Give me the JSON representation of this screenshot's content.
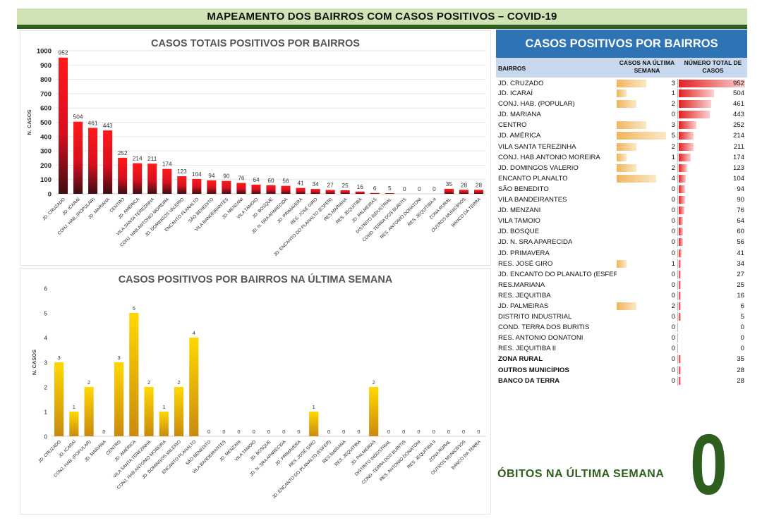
{
  "banner_title": "MAPEAMENTO DOS BAIRROS COM CASOS POSITIVOS – COVID-19",
  "colors": {
    "banner_bg": "#cfe3b4",
    "dark_green": "#2f5f1f",
    "table_title_bg": "#2e74b5",
    "table_head_bg": "#c8d8ee",
    "red": "#e32020",
    "orange": "#f0b55a",
    "yellow": "#ffd700"
  },
  "chart_data": [
    {
      "type": "bar",
      "title": "CASOS TOTAIS POSITIVOS POR BAIRROS",
      "ylabel": "N. CASOS",
      "xlabel": "",
      "ylim": [
        0,
        1000
      ],
      "yticks": [
        0,
        100,
        200,
        300,
        400,
        500,
        600,
        700,
        800,
        900,
        1000
      ],
      "grid": true,
      "categories": [
        "JD. CRUZADO",
        "JD. ICARAÍ",
        "CONJ. HAB. (POPULAR)",
        "JD. MARIANA",
        "CENTRO",
        "JD. AMÉRICA",
        "VILA SANTA TEREZINHA",
        "CONJ. HAB.ANTONIO MOREIRA",
        "JD. DOMINGOS VALERIO",
        "ENCANTO PLANALTO",
        "SÃO BENEDITO",
        "VILA BANDEIRANTES",
        "JD. MENZANI",
        "VILA TAMOIO",
        "JD. BOSQUE",
        "JD. N. SRA APARECIDA",
        "JD. PRIMAVERA",
        "RES. JOSÉ GIRO",
        "JD. ENCANTO DO PLANALTO (ESFER)",
        "RES.MARIANA",
        "RES. JEQUITIBA",
        "JD. PALMEIRAS",
        "DISTRITO INDUSTRIAL",
        "COND. TERRA DOS BURITIS",
        "RES. ANTONIO DONATONI",
        "RES. JEQUITIBA II",
        "ZONA RURAL",
        "OUTROS MUNICÍPIOS",
        "BANCO DA TERRA"
      ],
      "values": [
        952,
        504,
        461,
        443,
        252,
        214,
        211,
        174,
        123,
        104,
        94,
        90,
        76,
        64,
        60,
        56,
        41,
        34,
        27,
        25,
        16,
        6,
        5,
        0,
        0,
        0,
        35,
        28,
        28
      ]
    },
    {
      "type": "bar",
      "title": "CASOS POSITIVOS POR BAIRROS NA ÚLTIMA SEMANA",
      "ylabel": "N. CASOS",
      "xlabel": "",
      "ylim": [
        0,
        6
      ],
      "yticks": [
        0,
        1,
        2,
        3,
        4,
        5,
        6
      ],
      "grid": false,
      "categories": [
        "JD. CRUZADO",
        "JD. ICARAÍ",
        "CONJ. HAB. (POPULAR)",
        "JD. MARIANA",
        "CENTRO",
        "JD. AMÉRICA",
        "VILA SANTA TEREZINHA",
        "CONJ. HAB.ANTONIO MOREIRA",
        "JD. DOMINGOS VALERIO",
        "ENCANTO PLANALTO",
        "SÃO BENEDITO",
        "VILA BANDEIRANTES",
        "JD. MENZANI",
        "VILA TAMOIO",
        "JD. BOSQUE",
        "JD. N. SRA APARECIDA",
        "JD. PRIMAVERA",
        "RES. JOSÉ GIRO",
        "JD. ENCANTO DO PLANALTO (ESFER)",
        "RES.MARIANA",
        "RES. JEQUITIBA",
        "JD. PALMEIRAS",
        "DISTRITO INDUSTRIAL",
        "COND. TERRA DOS BURITIS",
        "RES. ANTONIO DONATONI",
        "RES. JEQUITIBA II",
        "ZONA RURAL",
        "OUTROS MUNICÍPIOS",
        "BANCO DA TERRA"
      ],
      "values": [
        3,
        1,
        2,
        0,
        3,
        5,
        2,
        1,
        2,
        4,
        0,
        0,
        0,
        0,
        0,
        0,
        0,
        1,
        0,
        0,
        0,
        2,
        0,
        0,
        0,
        0,
        0,
        0,
        0
      ]
    }
  ],
  "table": {
    "title": "CASOS POSITIVOS POR BAIRROS",
    "col1": "BAIRROS",
    "col2": "CASOS NA ÚLTIMA SEMANA",
    "col3": "NÚMERO TOTAL DE CASOS",
    "rows": [
      {
        "name": "JD. CRUZADO",
        "week": 3,
        "total": 952
      },
      {
        "name": "JD. ICARAÍ",
        "week": 1,
        "total": 504
      },
      {
        "name": "CONJ. HAB. (POPULAR)",
        "week": 2,
        "total": 461
      },
      {
        "name": "JD. MARIANA",
        "week": 0,
        "total": 443
      },
      {
        "name": "CENTRO",
        "week": 3,
        "total": 252
      },
      {
        "name": "JD. AMÉRICA",
        "week": 5,
        "total": 214
      },
      {
        "name": "VILA SANTA TEREZINHA",
        "week": 2,
        "total": 211
      },
      {
        "name": "CONJ. HAB.ANTONIO MOREIRA",
        "week": 1,
        "total": 174
      },
      {
        "name": "JD. DOMINGOS VALERIO",
        "week": 2,
        "total": 123
      },
      {
        "name": "ENCANTO PLANALTO",
        "week": 4,
        "total": 104
      },
      {
        "name": "SÃO BENEDITO",
        "week": 0,
        "total": 94
      },
      {
        "name": "VILA BANDEIRANTES",
        "week": 0,
        "total": 90
      },
      {
        "name": "JD. MENZANI",
        "week": 0,
        "total": 76
      },
      {
        "name": "VILA TAMOIO",
        "week": 0,
        "total": 64
      },
      {
        "name": "JD. BOSQUE",
        "week": 0,
        "total": 60
      },
      {
        "name": "JD. N. SRA APARECIDA",
        "week": 0,
        "total": 56
      },
      {
        "name": "JD. PRIMAVERA",
        "week": 0,
        "total": 41
      },
      {
        "name": "RES. JOSÉ GIRO",
        "week": 1,
        "total": 34
      },
      {
        "name": "JD. ENCANTO DO PLANALTO (ESFER)",
        "week": 0,
        "total": 27
      },
      {
        "name": "RES.MARIANA",
        "week": 0,
        "total": 25
      },
      {
        "name": "RES. JEQUITIBA",
        "week": 0,
        "total": 16
      },
      {
        "name": "JD. PALMEIRAS",
        "week": 2,
        "total": 6
      },
      {
        "name": "DISTRITO INDUSTRIAL",
        "week": 0,
        "total": 5
      },
      {
        "name": "COND. TERRA DOS BURITIS",
        "week": 0,
        "total": 0
      },
      {
        "name": "RES. ANTONIO DONATONI",
        "week": 0,
        "total": 0
      },
      {
        "name": "RES. JEQUITIBA II",
        "week": 0,
        "total": 0
      },
      {
        "name": "ZONA RURAL",
        "week": 0,
        "total": 35,
        "bold": true
      },
      {
        "name": "OUTROS MUNICÍPIOS",
        "week": 0,
        "total": 28,
        "bold": true
      },
      {
        "name": "BANCO DA TERRA",
        "week": 0,
        "total": 28,
        "bold": true
      }
    ]
  },
  "obitos": {
    "label": "ÓBITOS NA ÚLTIMA SEMANA",
    "value": "0"
  }
}
